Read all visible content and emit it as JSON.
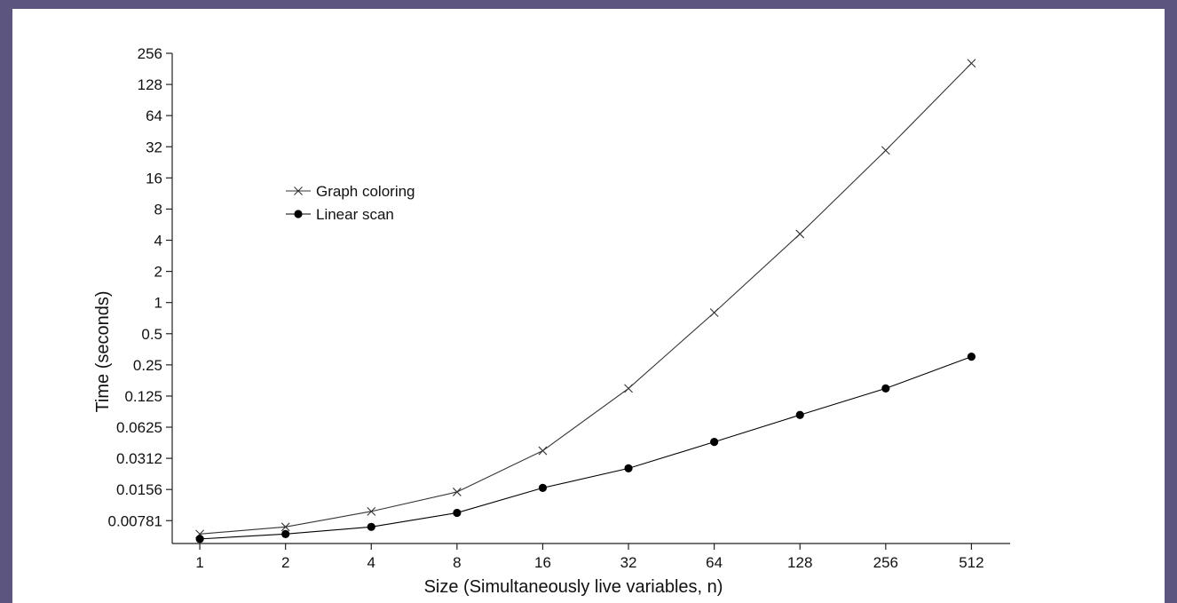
{
  "chart_data": {
    "type": "line",
    "title": "",
    "xlabel": "Size (Simultaneously live variables, n)",
    "ylabel": "Time (seconds)",
    "x_scale": "log2",
    "y_scale": "log2",
    "x": [
      1,
      2,
      4,
      8,
      16,
      32,
      64,
      128,
      256,
      512
    ],
    "x_tick_labels": [
      "1",
      "2",
      "4",
      "8",
      "16",
      "32",
      "64",
      "128",
      "256",
      "512"
    ],
    "y_tick_values": [
      0.0078125,
      0.015625,
      0.03125,
      0.0625,
      0.125,
      0.25,
      0.5,
      1,
      2,
      4,
      8,
      16,
      32,
      64,
      128,
      256
    ],
    "y_tick_labels": [
      "0.00781",
      "0.0156",
      "0.0312",
      "0.0625",
      "0.125",
      "0.25",
      "0.5",
      "1",
      "2",
      "4",
      "8",
      "16",
      "32",
      "64",
      "128",
      "256"
    ],
    "xlim": [
      0.8,
      700
    ],
    "ylim": [
      0.0047,
      256
    ],
    "grid": false,
    "legend_position": "upper-left",
    "series": [
      {
        "name": "Graph coloring",
        "marker": "cross",
        "color": "#333333",
        "values": [
          0.0058,
          0.0068,
          0.0096,
          0.0148,
          0.037,
          0.148,
          0.8,
          4.6,
          29.5,
          205
        ]
      },
      {
        "name": "Linear scan",
        "marker": "dot",
        "color": "#000000",
        "values": [
          0.0052,
          0.0058,
          0.0068,
          0.0093,
          0.0162,
          0.025,
          0.045,
          0.082,
          0.148,
          0.3
        ]
      }
    ]
  }
}
